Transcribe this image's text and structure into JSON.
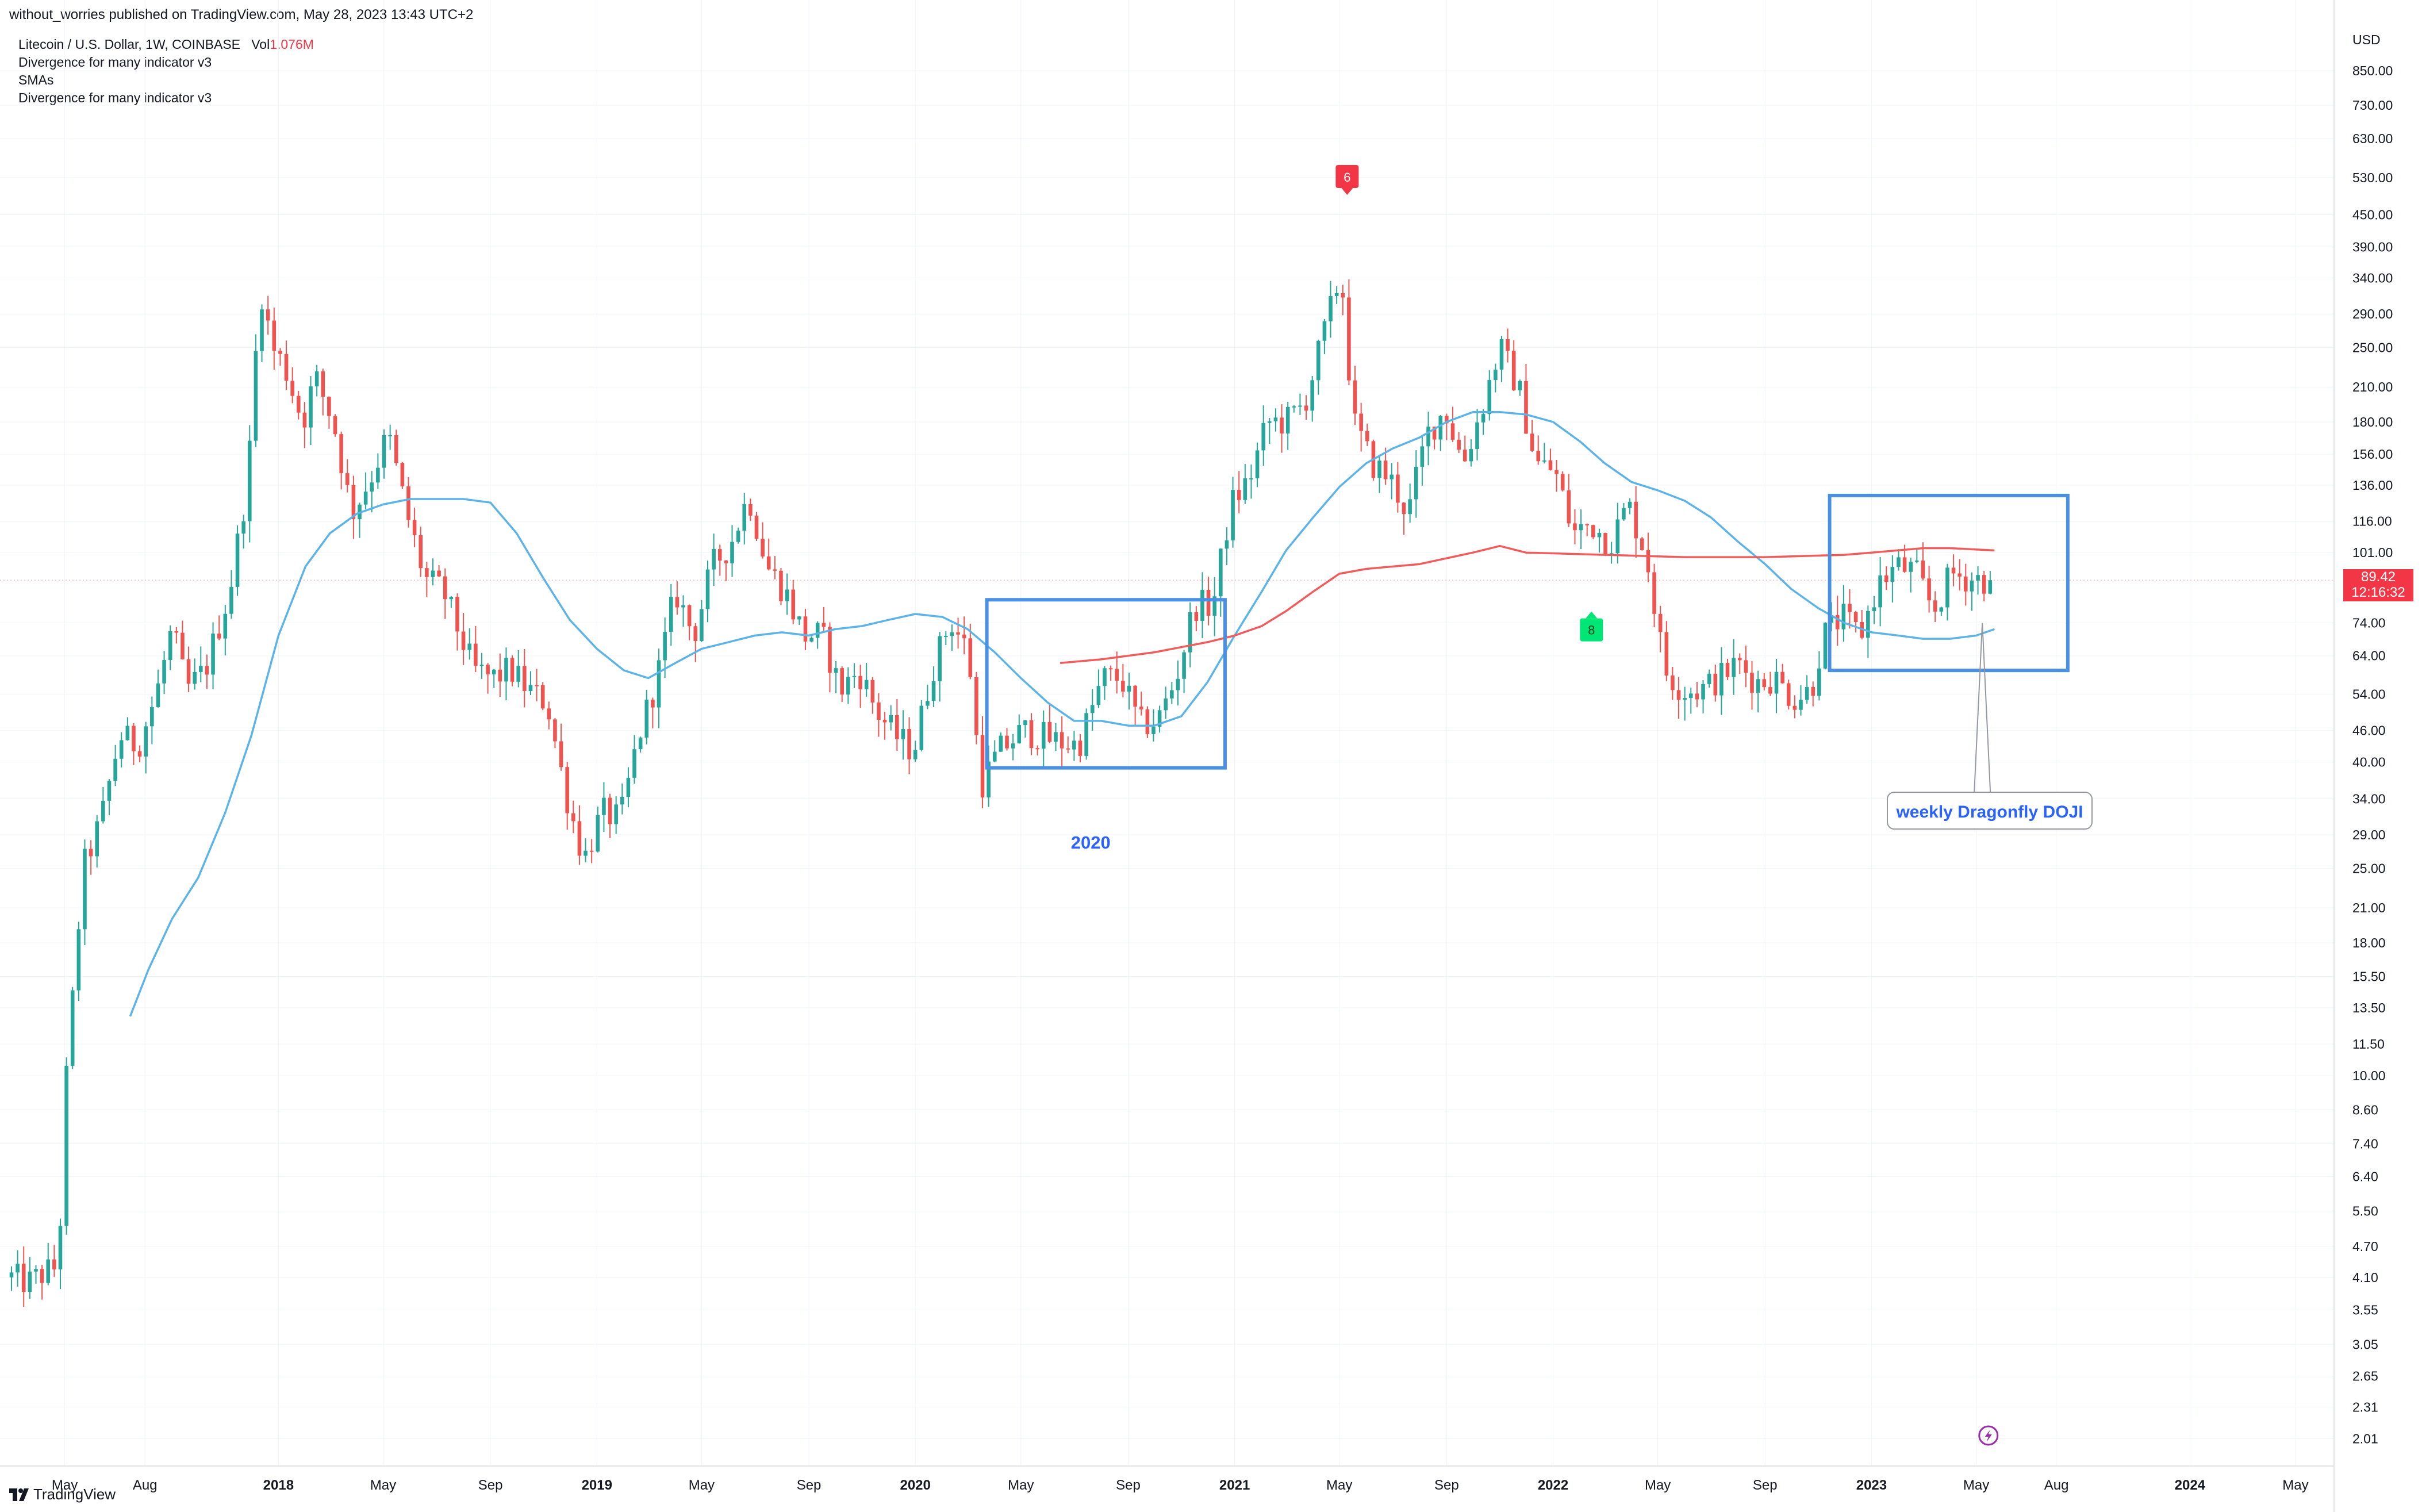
{
  "publisher": "without_worries published on TradingView.com, May 28, 2023 13:43 UTC+2",
  "legend": {
    "symbol": "Litecoin / U.S. Dollar, 1W, COINBASE",
    "vol_label": "Vol",
    "vol_value": "1.076M",
    "indicators": [
      "Divergence for many indicator v3",
      "SMAs",
      "Divergence for many indicator v3"
    ]
  },
  "footer": {
    "brand": "TradingView"
  },
  "price_tag": {
    "price": "89.42",
    "countdown": "12:16:32"
  },
  "colors": {
    "up": "#26a69a",
    "down": "#ef5350",
    "sma_short": "#5bb3e8",
    "sma_long": "#f05b5b",
    "box": "#4a90e2",
    "annotation": "#2962ff",
    "grid": "#f0f3fa",
    "marker_red": "#f23645",
    "marker_green": "#00e676"
  },
  "chart_data": {
    "type": "candlestick",
    "symbol": "Litecoin / U.S. Dollar",
    "interval": "1W",
    "exchange": "COINBASE",
    "y_scale": "log",
    "y_axis_label": "USD",
    "ylim": [
      1.85,
      1050
    ],
    "y_ticks": [
      "850.00",
      "730.00",
      "630.00",
      "530.00",
      "450.00",
      "390.00",
      "340.00",
      "290.00",
      "250.00",
      "210.00",
      "180.00",
      "156.00",
      "136.00",
      "116.00",
      "101.00",
      "74.00",
      "64.00",
      "54.00",
      "46.00",
      "40.00",
      "34.00",
      "29.00",
      "25.00",
      "21.00",
      "18.00",
      "15.50",
      "13.50",
      "11.50",
      "10.00",
      "8.60",
      "7.40",
      "6.40",
      "5.50",
      "4.70",
      "4.10",
      "3.55",
      "3.05",
      "2.65",
      "2.31",
      "2.01"
    ],
    "x_range": [
      "2017-03-01",
      "2024-06-01"
    ],
    "x_ticks": [
      {
        "label": "May",
        "date": "2017-05-01"
      },
      {
        "label": "Aug",
        "date": "2017-08-01"
      },
      {
        "label": "2018",
        "date": "2018-01-01"
      },
      {
        "label": "May",
        "date": "2018-05-01"
      },
      {
        "label": "Sep",
        "date": "2018-09-01"
      },
      {
        "label": "2019",
        "date": "2019-01-01"
      },
      {
        "label": "May",
        "date": "2019-05-01"
      },
      {
        "label": "Sep",
        "date": "2019-09-01"
      },
      {
        "label": "2020",
        "date": "2020-01-01"
      },
      {
        "label": "May",
        "date": "2020-05-01"
      },
      {
        "label": "Sep",
        "date": "2020-09-01"
      },
      {
        "label": "2021",
        "date": "2021-01-01"
      },
      {
        "label": "May",
        "date": "2021-05-01"
      },
      {
        "label": "Sep",
        "date": "2021-09-01"
      },
      {
        "label": "2022",
        "date": "2022-01-01"
      },
      {
        "label": "May",
        "date": "2022-05-01"
      },
      {
        "label": "Sep",
        "date": "2022-09-01"
      },
      {
        "label": "2023",
        "date": "2023-01-01"
      },
      {
        "label": "May",
        "date": "2023-05-01"
      },
      {
        "label": "Aug",
        "date": "2023-08-01"
      },
      {
        "label": "2024",
        "date": "2024-01-01"
      },
      {
        "label": "May",
        "date": "2024-05-01"
      }
    ],
    "close_anchors": [
      [
        "2017-03-01",
        4.1
      ],
      [
        "2017-03-20",
        4.0
      ],
      [
        "2017-04-10",
        4.2
      ],
      [
        "2017-04-24",
        4.3
      ],
      [
        "2017-05-01",
        9
      ],
      [
        "2017-05-22",
        25
      ],
      [
        "2017-06-12",
        31
      ],
      [
        "2017-07-03",
        45
      ],
      [
        "2017-07-24",
        43
      ],
      [
        "2017-08-14",
        54
      ],
      [
        "2017-09-01",
        72
      ],
      [
        "2017-09-18",
        55
      ],
      [
        "2017-10-09",
        60
      ],
      [
        "2017-11-06",
        85
      ],
      [
        "2017-11-27",
        140
      ],
      [
        "2017-12-11",
        330
      ],
      [
        "2017-12-25",
        250
      ],
      [
        "2018-01-08",
        230
      ],
      [
        "2018-01-29",
        180
      ],
      [
        "2018-02-12",
        220
      ],
      [
        "2018-03-05",
        180
      ],
      [
        "2018-03-26",
        120
      ],
      [
        "2018-04-16",
        140
      ],
      [
        "2018-05-07",
        170
      ],
      [
        "2018-05-28",
        120
      ],
      [
        "2018-06-18",
        90
      ],
      [
        "2018-07-09",
        85
      ],
      [
        "2018-08-13",
        60
      ],
      [
        "2018-09-03",
        58
      ],
      [
        "2018-09-24",
        60
      ],
      [
        "2018-10-15",
        55
      ],
      [
        "2018-11-05",
        52
      ],
      [
        "2018-11-26",
        35
      ],
      [
        "2018-12-17",
        26
      ],
      [
        "2019-01-07",
        32
      ],
      [
        "2019-01-28",
        31
      ],
      [
        "2019-02-18",
        45
      ],
      [
        "2019-03-11",
        58
      ],
      [
        "2019-04-01",
        85
      ],
      [
        "2019-04-22",
        70
      ],
      [
        "2019-05-13",
        95
      ],
      [
        "2019-06-03",
        105
      ],
      [
        "2019-06-24",
        130
      ],
      [
        "2019-07-15",
        95
      ],
      [
        "2019-08-05",
        85
      ],
      [
        "2019-08-26",
        70
      ],
      [
        "2019-09-16",
        70
      ],
      [
        "2019-10-07",
        55
      ],
      [
        "2019-10-28",
        60
      ],
      [
        "2019-11-18",
        50
      ],
      [
        "2019-12-09",
        45
      ],
      [
        "2019-12-30",
        42
      ],
      [
        "2020-01-20",
        60
      ],
      [
        "2020-02-10",
        75
      ],
      [
        "2020-03-02",
        65
      ],
      [
        "2020-03-16",
        36
      ],
      [
        "2020-04-06",
        42
      ],
      [
        "2020-05-04",
        46
      ],
      [
        "2020-06-08",
        44
      ],
      [
        "2020-07-06",
        43
      ],
      [
        "2020-08-03",
        58
      ],
      [
        "2020-08-24",
        58
      ],
      [
        "2020-09-14",
        47
      ],
      [
        "2020-10-05",
        48
      ],
      [
        "2020-10-26",
        58
      ],
      [
        "2020-11-16",
        80
      ],
      [
        "2020-12-07",
        80
      ],
      [
        "2020-12-28",
        125
      ],
      [
        "2021-01-18",
        140
      ],
      [
        "2021-02-08",
        180
      ],
      [
        "2021-03-01",
        180
      ],
      [
        "2021-03-22",
        195
      ],
      [
        "2021-04-12",
        260
      ],
      [
        "2021-05-03",
        350
      ],
      [
        "2021-05-17",
        180
      ],
      [
        "2021-06-07",
        150
      ],
      [
        "2021-06-28",
        140
      ],
      [
        "2021-07-19",
        120
      ],
      [
        "2021-08-09",
        170
      ],
      [
        "2021-08-30",
        190
      ],
      [
        "2021-09-20",
        150
      ],
      [
        "2021-10-11",
        190
      ],
      [
        "2021-11-01",
        250
      ],
      [
        "2021-11-22",
        210
      ],
      [
        "2021-12-13",
        150
      ],
      [
        "2022-01-03",
        145
      ],
      [
        "2022-01-24",
        110
      ],
      [
        "2022-02-14",
        115
      ],
      [
        "2022-03-07",
        105
      ],
      [
        "2022-03-28",
        125
      ],
      [
        "2022-04-18",
        100
      ],
      [
        "2022-05-09",
        60
      ],
      [
        "2022-05-30",
        55
      ],
      [
        "2022-06-20",
        55
      ],
      [
        "2022-07-11",
        58
      ],
      [
        "2022-08-01",
        62
      ],
      [
        "2022-08-22",
        57
      ],
      [
        "2022-09-12",
        58
      ],
      [
        "2022-10-03",
        53
      ],
      [
        "2022-10-24",
        55
      ],
      [
        "2022-11-07",
        70
      ],
      [
        "2022-11-28",
        76
      ],
      [
        "2022-12-19",
        70
      ],
      [
        "2023-01-09",
        88
      ],
      [
        "2023-01-30",
        95
      ],
      [
        "2023-02-20",
        93
      ],
      [
        "2023-03-13",
        78
      ],
      [
        "2023-04-03",
        92
      ],
      [
        "2023-04-24",
        90
      ],
      [
        "2023-05-22",
        89.42
      ]
    ],
    "sma_short": [
      [
        "2017-07-15",
        13
      ],
      [
        "2017-08-05",
        16
      ],
      [
        "2017-09-01",
        20
      ],
      [
        "2017-10-01",
        24
      ],
      [
        "2017-11-01",
        32
      ],
      [
        "2017-12-01",
        45
      ],
      [
        "2018-01-01",
        70
      ],
      [
        "2018-02-01",
        95
      ],
      [
        "2018-03-01",
        110
      ],
      [
        "2018-04-01",
        120
      ],
      [
        "2018-05-01",
        125
      ],
      [
        "2018-06-01",
        128
      ],
      [
        "2018-07-01",
        128
      ],
      [
        "2018-08-01",
        128
      ],
      [
        "2018-09-01",
        126
      ],
      [
        "2018-10-01",
        110
      ],
      [
        "2018-11-01",
        90
      ],
      [
        "2018-12-01",
        75
      ],
      [
        "2019-01-01",
        66
      ],
      [
        "2019-02-01",
        60
      ],
      [
        "2019-03-01",
        58
      ],
      [
        "2019-04-01",
        62
      ],
      [
        "2019-05-01",
        66
      ],
      [
        "2019-06-01",
        68
      ],
      [
        "2019-07-01",
        70
      ],
      [
        "2019-08-01",
        71
      ],
      [
        "2019-09-01",
        70
      ],
      [
        "2019-10-01",
        72
      ],
      [
        "2019-11-01",
        73
      ],
      [
        "2019-12-01",
        75
      ],
      [
        "2020-01-01",
        77
      ],
      [
        "2020-02-01",
        76
      ],
      [
        "2020-03-01",
        72
      ],
      [
        "2020-04-01",
        65
      ],
      [
        "2020-05-01",
        58
      ],
      [
        "2020-06-01",
        52
      ],
      [
        "2020-07-01",
        48
      ],
      [
        "2020-08-01",
        48
      ],
      [
        "2020-09-01",
        47
      ],
      [
        "2020-10-01",
        47
      ],
      [
        "2020-11-01",
        49
      ],
      [
        "2020-12-01",
        57
      ],
      [
        "2021-01-01",
        70
      ],
      [
        "2021-02-01",
        85
      ],
      [
        "2021-03-01",
        102
      ],
      [
        "2021-04-01",
        118
      ],
      [
        "2021-05-01",
        135
      ],
      [
        "2021-06-01",
        150
      ],
      [
        "2021-07-01",
        160
      ],
      [
        "2021-08-01",
        168
      ],
      [
        "2021-09-01",
        180
      ],
      [
        "2021-10-01",
        188
      ],
      [
        "2021-11-01",
        188
      ],
      [
        "2021-12-01",
        186
      ],
      [
        "2022-01-01",
        180
      ],
      [
        "2022-02-01",
        165
      ],
      [
        "2022-03-01",
        150
      ],
      [
        "2022-04-01",
        138
      ],
      [
        "2022-05-01",
        133
      ],
      [
        "2022-06-01",
        127
      ],
      [
        "2022-07-01",
        118
      ],
      [
        "2022-08-01",
        106
      ],
      [
        "2022-09-01",
        96
      ],
      [
        "2022-10-01",
        86
      ],
      [
        "2022-11-01",
        79
      ],
      [
        "2022-12-01",
        74
      ],
      [
        "2023-01-01",
        71
      ],
      [
        "2023-02-01",
        70
      ],
      [
        "2023-03-01",
        69
      ],
      [
        "2023-04-01",
        69
      ],
      [
        "2023-05-01",
        70
      ],
      [
        "2023-05-22",
        72
      ]
    ],
    "sma_long": [
      [
        "2020-06-15",
        62
      ],
      [
        "2020-08-01",
        63
      ],
      [
        "2020-10-01",
        65
      ],
      [
        "2020-12-01",
        68
      ],
      [
        "2021-01-01",
        70
      ],
      [
        "2021-02-01",
        73
      ],
      [
        "2021-03-01",
        78
      ],
      [
        "2021-04-01",
        85
      ],
      [
        "2021-05-01",
        92
      ],
      [
        "2021-06-01",
        94
      ],
      [
        "2021-08-01",
        96
      ],
      [
        "2021-10-01",
        101
      ],
      [
        "2021-11-01",
        104
      ],
      [
        "2021-12-01",
        101
      ],
      [
        "2022-03-01",
        100
      ],
      [
        "2022-06-01",
        99
      ],
      [
        "2022-09-01",
        99
      ],
      [
        "2022-12-01",
        100
      ],
      [
        "2023-01-01",
        101
      ],
      [
        "2023-03-01",
        103
      ],
      [
        "2023-04-01",
        103
      ],
      [
        "2023-05-22",
        102
      ]
    ],
    "annotations": {
      "label_2020": "2020",
      "doji_label": "weekly Dragonfly DOJI",
      "marker_top": "6",
      "marker_bottom": "8"
    },
    "rectangles": [
      {
        "from": "2020-03-23",
        "to": "2020-12-21",
        "top": 82,
        "bottom": 39
      },
      {
        "from": "2022-11-14",
        "to": "2023-08-14",
        "top": 130,
        "bottom": 60
      }
    ],
    "markers": [
      {
        "date": "2021-05-10",
        "price": 530,
        "text": "6",
        "side": "above",
        "color": "red"
      },
      {
        "date": "2022-02-14",
        "price": 74,
        "text": "8",
        "side": "below",
        "color": "green"
      }
    ],
    "last_price": 89.42
  }
}
